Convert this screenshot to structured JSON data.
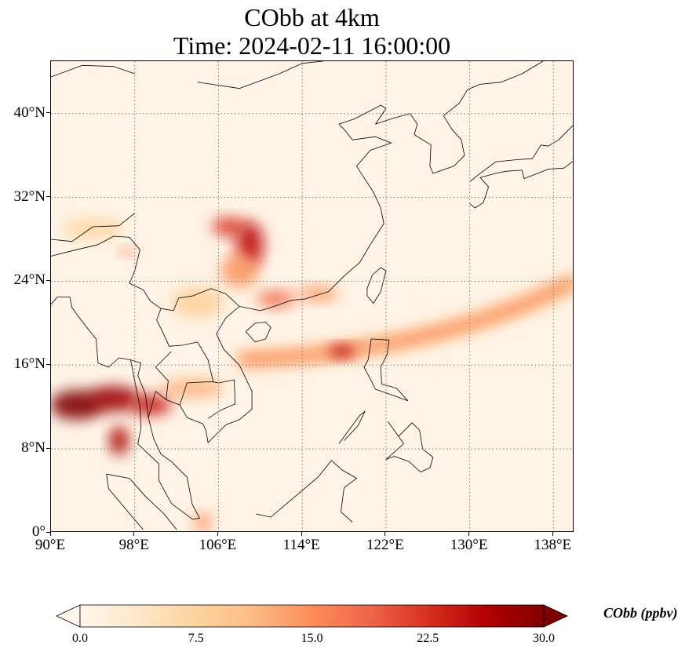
{
  "title": {
    "line1": "CObb at 4km",
    "line2": "Time: 2024-02-11 16:00:00"
  },
  "map": {
    "projection": "PlateCarree",
    "lon_range": [
      90,
      140
    ],
    "lat_range": [
      0,
      45
    ],
    "gridlines": "dotted",
    "background_color": "#fff4e6",
    "coastline_color": "#000000",
    "colormap": "OrRd"
  },
  "lat_ticks": [
    {
      "value": 0,
      "label": "0°"
    },
    {
      "value": 8,
      "label": "8°N"
    },
    {
      "value": 16,
      "label": "16°N"
    },
    {
      "value": 24,
      "label": "24°N"
    },
    {
      "value": 32,
      "label": "32°N"
    },
    {
      "value": 40,
      "label": "40°N"
    }
  ],
  "lon_ticks": [
    {
      "value": 90,
      "label": "90°E"
    },
    {
      "value": 98,
      "label": "98°E"
    },
    {
      "value": 106,
      "label": "106°E"
    },
    {
      "value": 114,
      "label": "114°E"
    },
    {
      "value": 122,
      "label": "122°E"
    },
    {
      "value": 130,
      "label": "130°E"
    },
    {
      "value": 138,
      "label": "138°E"
    }
  ],
  "colorbar": {
    "label": "CObb (ppbv)",
    "min": 0.0,
    "max": 30.0,
    "extend": "both",
    "ticks": [
      "0.0",
      "7.5",
      "15.0",
      "22.5",
      "30.0"
    ],
    "stops": [
      "#fff7ec",
      "#fee8c8",
      "#fdd49e",
      "#fdbb84",
      "#fc8d59",
      "#ef6548",
      "#d7301f",
      "#b30000",
      "#7f0000"
    ]
  },
  "plumes": [
    {
      "lon": 92.5,
      "lat": 12.2,
      "value": 30,
      "rlon": 2.6,
      "rlat": 1.4
    },
    {
      "lon": 96.0,
      "lat": 12.8,
      "value": 28,
      "rlon": 2.4,
      "rlat": 1.2
    },
    {
      "lon": 99.5,
      "lat": 12.2,
      "value": 24,
      "rlon": 2.0,
      "rlat": 1.0
    },
    {
      "lon": 96.5,
      "lat": 8.8,
      "value": 27,
      "rlon": 0.9,
      "rlat": 1.4
    },
    {
      "lon": 103.5,
      "lat": 13.8,
      "value": 12,
      "rlon": 3.0,
      "rlat": 0.9
    },
    {
      "lon": 107.0,
      "lat": 29.2,
      "value": 22,
      "rlon": 1.6,
      "rlat": 0.9
    },
    {
      "lon": 109.0,
      "lat": 27.5,
      "value": 25,
      "rlon": 1.3,
      "rlat": 2.2
    },
    {
      "lon": 108.0,
      "lat": 25.0,
      "value": 14,
      "rlon": 1.8,
      "rlat": 1.6
    },
    {
      "lon": 111.5,
      "lat": 22.3,
      "value": 18,
      "rlon": 1.8,
      "rlat": 0.8
    },
    {
      "lon": 115.5,
      "lat": 22.8,
      "value": 14,
      "rlon": 2.0,
      "rlat": 0.7
    },
    {
      "lon": 117.8,
      "lat": 17.3,
      "value": 26,
      "rlon": 1.2,
      "rlat": 0.6
    },
    {
      "lon": 97.3,
      "lat": 26.8,
      "value": 18,
      "rlon": 0.6,
      "rlat": 0.4
    },
    {
      "lon": 104.5,
      "lat": 1.0,
      "value": 14,
      "rlon": 0.9,
      "rlat": 0.9
    },
    {
      "lon": 104.0,
      "lat": 22.0,
      "value": 8,
      "rlon": 2.5,
      "rlat": 1.5
    },
    {
      "lon": 94.0,
      "lat": 29.0,
      "value": 7,
      "rlon": 3.0,
      "rlat": 1.0
    }
  ],
  "band": {
    "from_lon": 108,
    "from_lat": 16.5,
    "to_lon": 140,
    "to_lat": 24,
    "peak_value": 20
  }
}
